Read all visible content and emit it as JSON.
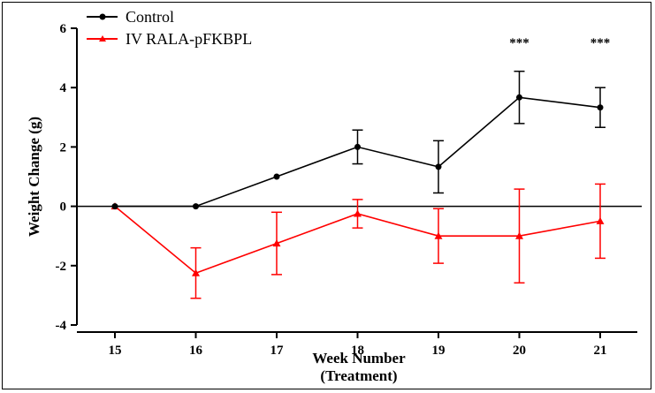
{
  "chart_data": {
    "type": "line",
    "x": [
      15,
      16,
      17,
      18,
      19,
      20,
      21
    ],
    "categories": [
      "15",
      "16",
      "17",
      "18",
      "19",
      "20",
      "21"
    ],
    "xlabel_line1": "Week Number",
    "xlabel_line2": "(Treatment)",
    "ylabel": "Weight Change (g)",
    "ylim": [
      -4,
      6
    ],
    "yticks": [
      "-4",
      "-2",
      "0",
      "2",
      "4",
      "6"
    ],
    "ytick_values": [
      -4,
      -2,
      0,
      2,
      4,
      6
    ],
    "legend_position": "top-left",
    "series": [
      {
        "name": "Control",
        "color": "#000000",
        "marker": "circle",
        "values": [
          0,
          0,
          1.0,
          2.0,
          1.33,
          3.67,
          3.33
        ],
        "errors": [
          0,
          0,
          0,
          0.57,
          0.88,
          0.88,
          0.67
        ]
      },
      {
        "name": "IV RALA-pFKBPL",
        "color": "#ff0000",
        "marker": "triangle",
        "values": [
          0,
          -2.25,
          -1.25,
          -0.25,
          -1.0,
          -1.0,
          -0.5
        ],
        "errors": [
          0,
          0.85,
          1.05,
          0.48,
          0.92,
          1.58,
          1.25
        ]
      }
    ],
    "annotations": [
      {
        "text": "***",
        "x": 20
      },
      {
        "text": "***",
        "x": 21
      }
    ]
  }
}
